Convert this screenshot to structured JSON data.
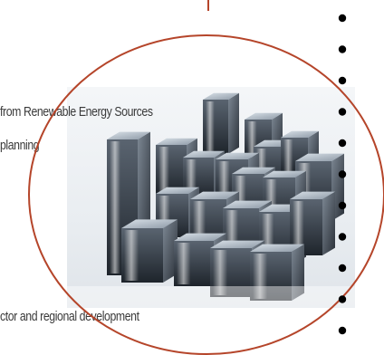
{
  "slide": {
    "text_fragments": [
      "from Renewable Energy Sources",
      "planning",
      "ctor and regional development"
    ],
    "image": {
      "icon": "reflective-metal-cubes-image"
    },
    "bullets": {
      "count": 11,
      "color": "#000000"
    },
    "colors": {
      "ellipse_outline": "#b5452a",
      "text": "#3a3a3a"
    }
  }
}
